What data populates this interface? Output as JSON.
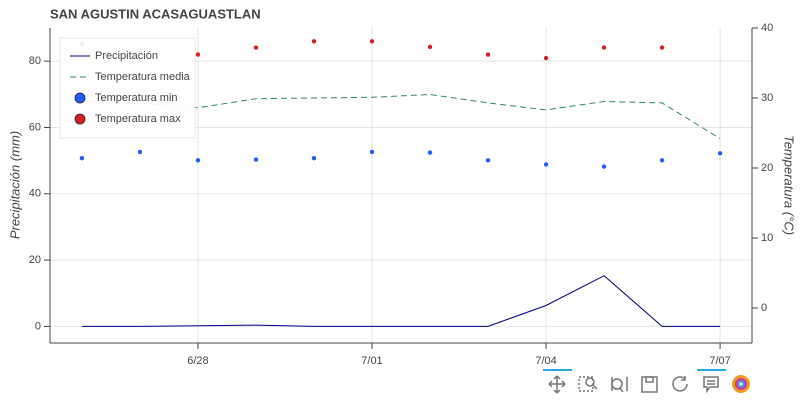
{
  "chart_data": {
    "type": "line",
    "title": "SAN AGUSTIN ACASAGUASTLAN",
    "ylabel": "Precipitación (mm)",
    "y2label": "Temperatura (°C)",
    "categories": [
      null,
      null,
      "6/28",
      null,
      null,
      "7/01",
      null,
      null,
      "7/04",
      null,
      null,
      "7/07"
    ],
    "ylim": [
      -5,
      90
    ],
    "yticks": [
      0,
      20,
      40,
      60,
      80
    ],
    "y2lim": [
      -5,
      40
    ],
    "y2ticks": [
      0,
      10,
      20,
      30,
      40
    ],
    "grid": true,
    "legend": "top_left",
    "series": [
      {
        "name": "Precipitación",
        "kind": "line",
        "color": "#000080",
        "axis": "y",
        "values": [
          0,
          0,
          0.2,
          0.4,
          0,
          0,
          0,
          0,
          6.3,
          15.3,
          0,
          0
        ]
      },
      {
        "name": "Temperatura media",
        "kind": "line",
        "dash": true,
        "color": "#2e8b57",
        "axis": "y2",
        "values": [
          29.6,
          29.2,
          28.6,
          29.9,
          30.0,
          30.1,
          30.5,
          29.3,
          28.3,
          29.5,
          29.3,
          24.2
        ]
      },
      {
        "name": "Temperatura min",
        "kind": "scatter",
        "color": "#1f5fff",
        "axis": "y2",
        "values": [
          21.4,
          22.3,
          21.1,
          21.2,
          21.4,
          22.3,
          22.2,
          21.1,
          20.5,
          20.2,
          21.1,
          22.1
        ]
      },
      {
        "name": "Temperatura max",
        "kind": "scatter",
        "color": "#d62020",
        "axis": "y2",
        "values": [
          37.7,
          36.7,
          36.2,
          37.2,
          38.1,
          38.1,
          37.3,
          36.2,
          35.7,
          37.2,
          37.2,
          null
        ]
      }
    ]
  }
}
